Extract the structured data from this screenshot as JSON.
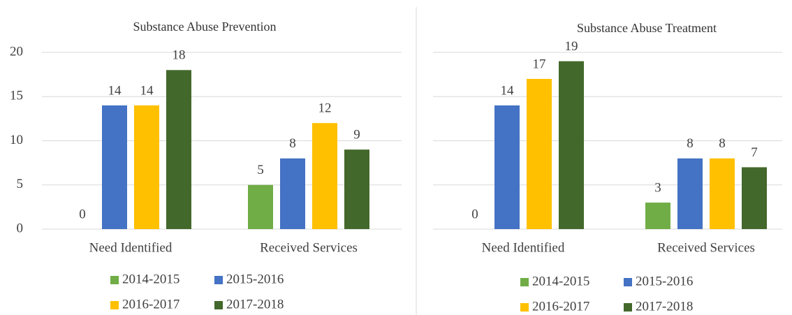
{
  "chart_data": [
    {
      "type": "bar",
      "title": "Substance Abuse Prevention",
      "categories": [
        "Need Identified",
        "Received Services"
      ],
      "series": [
        {
          "name": "2014-2015",
          "color": "#70ad47",
          "values": [
            0,
            5
          ]
        },
        {
          "name": "2015-2016",
          "color": "#4472c4",
          "values": [
            14,
            8
          ]
        },
        {
          "name": "2016-2017",
          "color": "#ffc000",
          "values": [
            14,
            12
          ]
        },
        {
          "name": "2017-2018",
          "color": "#43682b",
          "values": [
            18,
            9
          ]
        }
      ],
      "ylim": [
        0,
        20
      ],
      "yticks": [
        0,
        5,
        10,
        15,
        20
      ],
      "ytick_labels": true,
      "grid": true,
      "legend": "bottom"
    },
    {
      "type": "bar",
      "title": "Substance Abuse Treatment",
      "categories": [
        "Need Identified",
        "Received Services"
      ],
      "series": [
        {
          "name": "2014-2015",
          "color": "#70ad47",
          "values": [
            0,
            3
          ]
        },
        {
          "name": "2015-2016",
          "color": "#4472c4",
          "values": [
            14,
            8
          ]
        },
        {
          "name": "2016-2017",
          "color": "#ffc000",
          "values": [
            17,
            8
          ]
        },
        {
          "name": "2017-2018",
          "color": "#43682b",
          "values": [
            19,
            7
          ]
        }
      ],
      "ylim": [
        0,
        20
      ],
      "yticks": [
        0,
        5,
        10,
        15,
        20
      ],
      "ytick_labels": false,
      "grid": true,
      "legend": "bottom"
    }
  ]
}
